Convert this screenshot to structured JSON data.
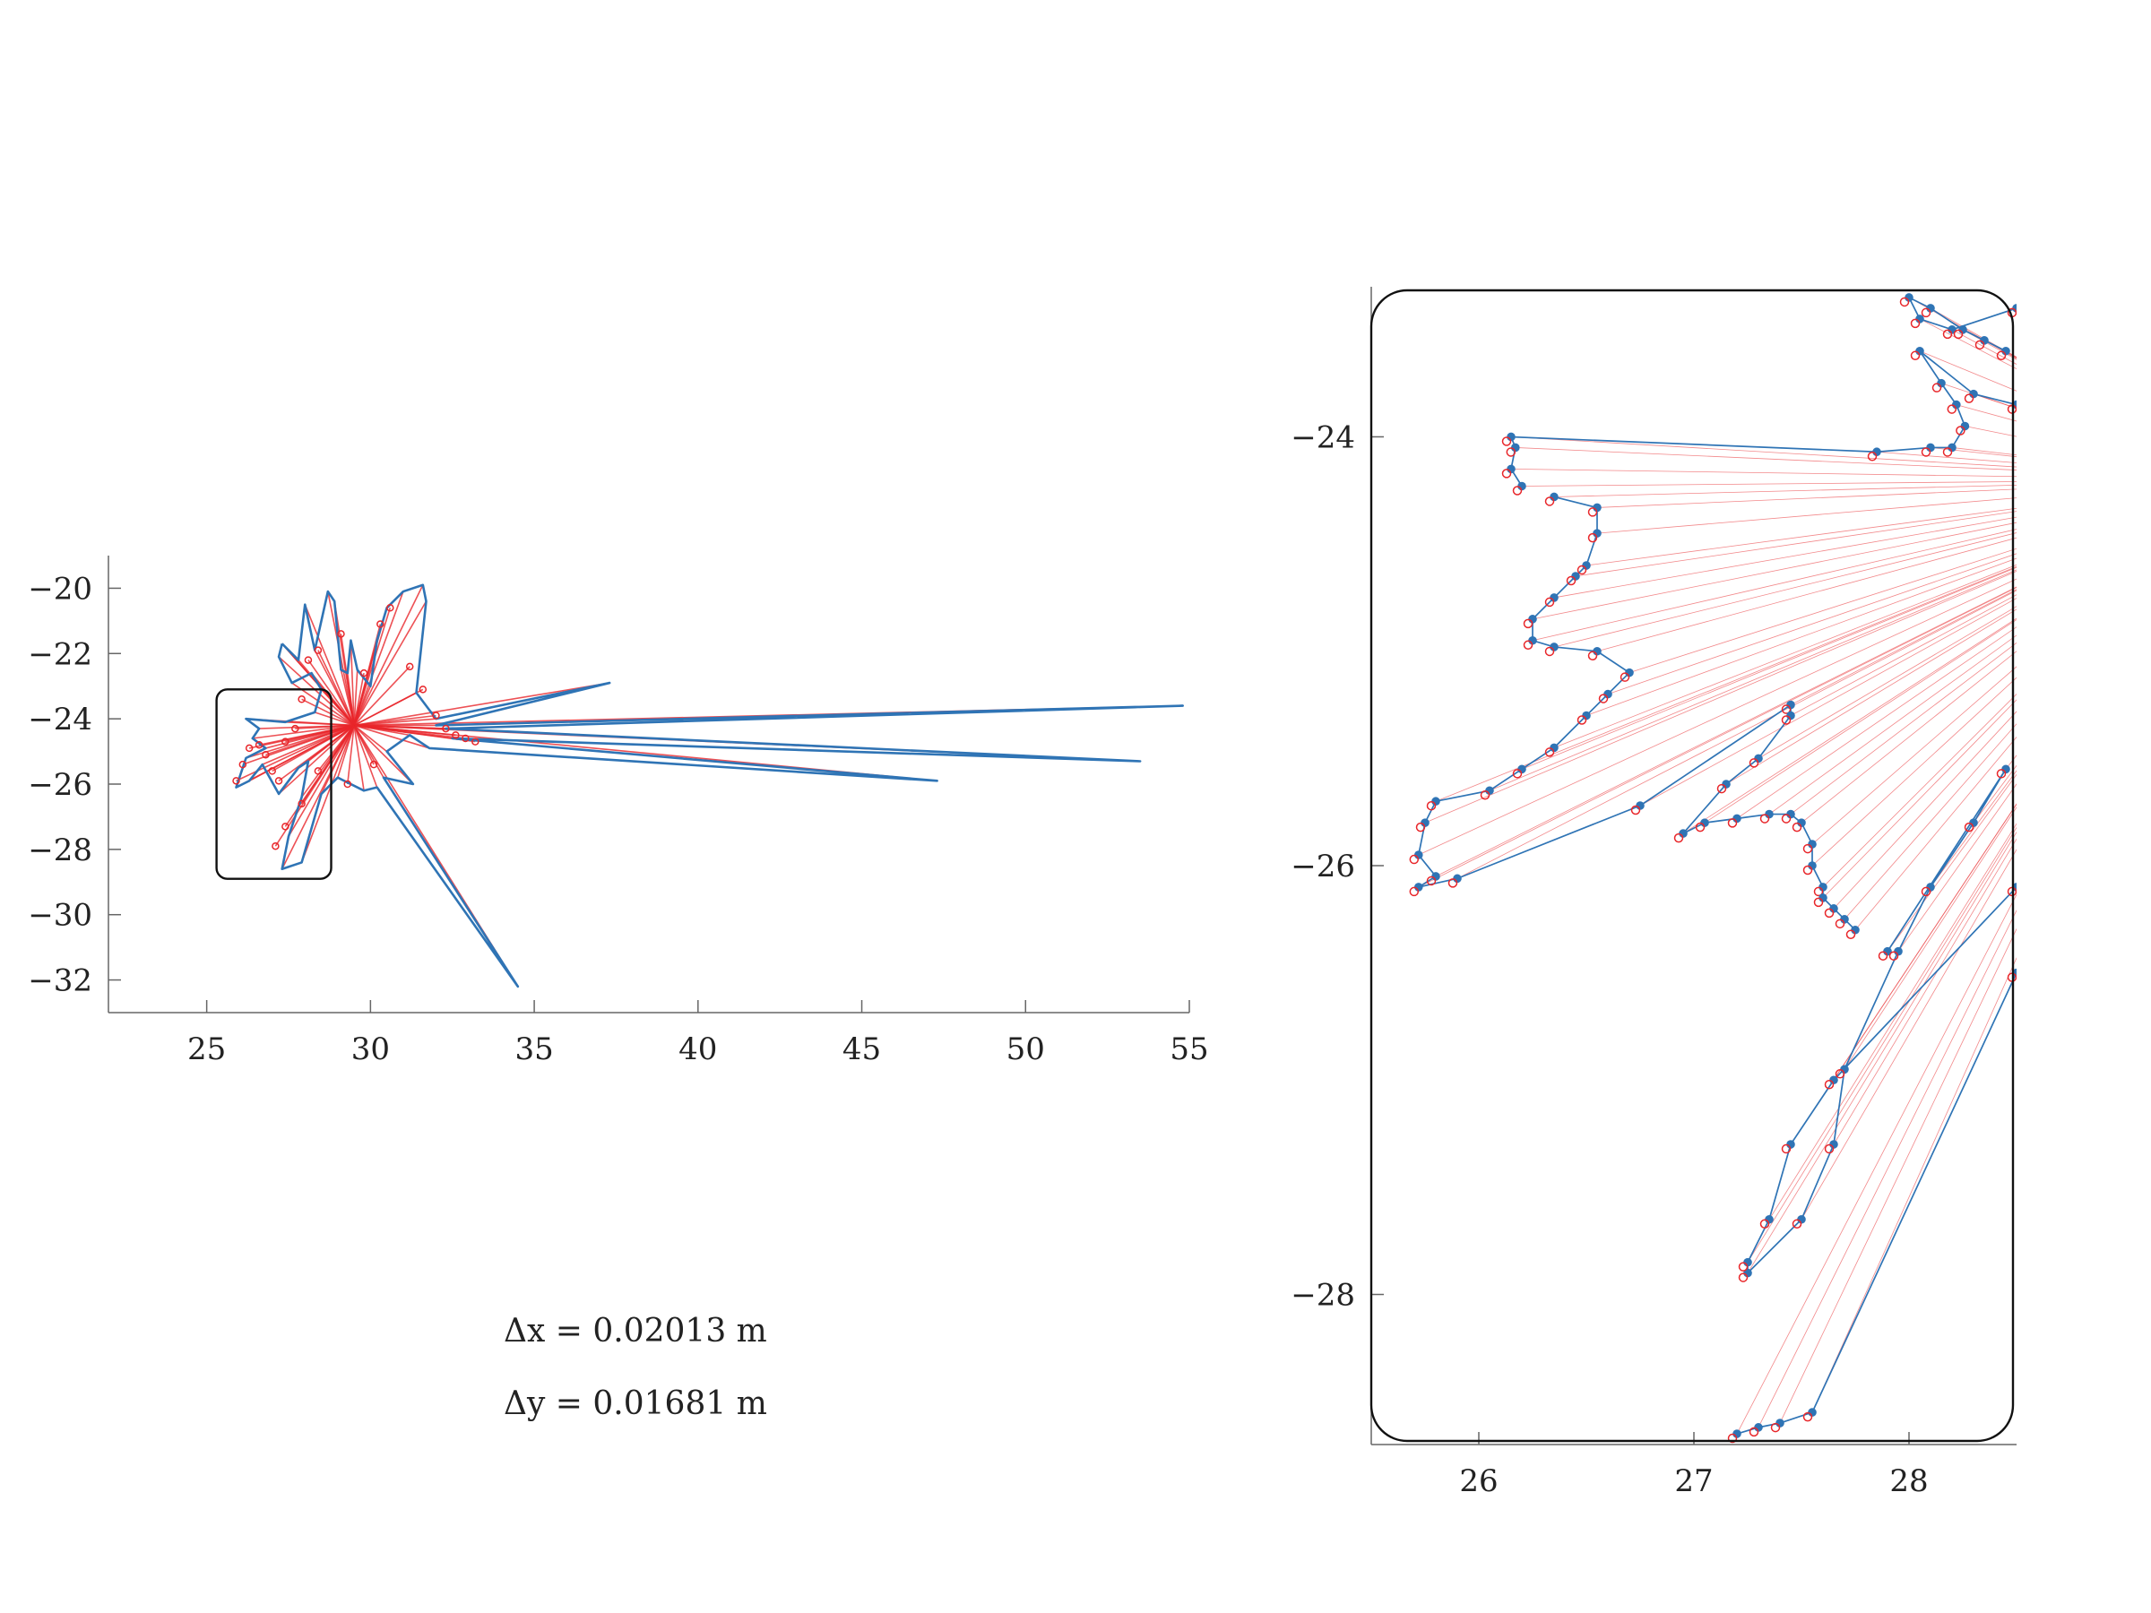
{
  "annotations": {
    "dx": "Δx = 0.02013 m",
    "dy": "Δy = 0.01681 m"
  },
  "colors": {
    "scan": "#2f74b5",
    "rays": "#e8262a",
    "box": "#111111"
  },
  "chart_data": [
    {
      "type": "line",
      "panel": "overview",
      "title": "",
      "xlabel": "",
      "ylabel": "",
      "xlim": [
        22,
        55
      ],
      "ylim": [
        -33,
        -19
      ],
      "xticks": [
        25,
        30,
        35,
        40,
        45,
        50,
        55
      ],
      "yticks": [
        -20,
        -22,
        -24,
        -26,
        -28,
        -30,
        -32
      ],
      "xtick_labels": [
        "25",
        "30",
        "35",
        "40",
        "45",
        "50",
        "55"
      ],
      "ytick_labels": [
        "−20",
        "−22",
        "−24",
        "−26",
        "−28",
        "−30",
        "−32"
      ],
      "grid": false,
      "sensor_origin": [
        29.5,
        -24.2
      ],
      "zoom_region": {
        "x": [
          25.3,
          28.8
        ],
        "y": [
          -28.9,
          -23.1
        ]
      },
      "series": [
        {
          "style": "scan-polyline",
          "x": [
            27.3,
            27.8,
            28.0,
            28.3,
            28.7,
            28.9,
            29.1,
            29.3,
            29.4,
            29.6,
            30.0,
            30.2,
            30.5,
            31.0,
            31.6,
            31.7,
            31.4,
            32.0,
            37.3,
            32.0,
            54.8,
            32.3,
            53.5,
            32.5,
            47.3,
            31.8,
            31.2,
            30.5,
            31.3,
            30.4,
            34.5,
            30.2,
            29.8,
            29.0,
            28.5,
            27.9,
            27.3,
            27.5,
            27.9,
            28.1,
            27.8,
            27.2,
            26.7,
            26.3,
            25.9,
            26.2,
            26.8,
            26.4,
            26.6,
            26.2,
            27.4,
            28.3,
            28.5,
            28.2,
            27.6,
            27.2,
            27.3
          ],
          "y": [
            -21.7,
            -22.2,
            -20.5,
            -21.9,
            -20.1,
            -20.4,
            -22.5,
            -22.6,
            -21.6,
            -22.5,
            -23.0,
            -21.6,
            -20.6,
            -20.1,
            -19.9,
            -20.4,
            -23.2,
            -24.0,
            -22.9,
            -24.2,
            -23.6,
            -24.3,
            -25.3,
            -24.6,
            -25.9,
            -24.9,
            -24.5,
            -25.0,
            -26.0,
            -25.8,
            -32.2,
            -26.1,
            -26.2,
            -25.8,
            -26.3,
            -28.4,
            -28.6,
            -27.6,
            -26.4,
            -25.3,
            -25.5,
            -26.3,
            -25.4,
            -25.9,
            -26.1,
            -25.2,
            -24.9,
            -24.6,
            -24.3,
            -24.0,
            -24.1,
            -23.8,
            -23.1,
            -22.6,
            -22.9,
            -22.1,
            -21.7
          ]
        },
        {
          "style": "measured-points",
          "x": [
            25.9,
            26.1,
            26.3,
            26.6,
            26.8,
            27.0,
            27.2,
            27.4,
            27.7,
            27.9,
            28.1,
            28.4,
            29.1,
            29.8,
            30.3,
            30.6,
            31.2,
            31.6,
            32.0,
            32.3,
            32.6,
            32.9,
            33.2,
            30.1,
            29.3,
            28.4,
            27.9,
            27.4,
            27.1
          ],
          "y": [
            -25.9,
            -25.4,
            -24.9,
            -24.8,
            -25.1,
            -25.6,
            -25.9,
            -24.7,
            -24.3,
            -23.4,
            -22.2,
            -21.9,
            -21.4,
            -22.6,
            -21.1,
            -20.6,
            -22.4,
            -23.1,
            -23.9,
            -24.3,
            -24.5,
            -24.6,
            -24.7,
            -25.4,
            -26.0,
            -25.6,
            -26.6,
            -27.3,
            -27.9
          ]
        }
      ]
    },
    {
      "type": "line",
      "panel": "zoom",
      "title": "",
      "xlabel": "",
      "ylabel": "",
      "xlim": [
        25.5,
        28.5
      ],
      "ylim": [
        -28.7,
        -23.3
      ],
      "xticks": [
        26,
        27,
        28
      ],
      "yticks": [
        -24,
        -26,
        -28
      ],
      "xtick_labels": [
        "26",
        "27",
        "28"
      ],
      "ytick_labels": [
        "−24",
        "−26",
        "−28"
      ],
      "grid": false,
      "sensor_origin": [
        29.5,
        -24.2
      ],
      "series": [
        {
          "style": "scan-polyline-a",
          "x": [
            28.5,
            28.3,
            28.05,
            28.15,
            28.22,
            28.26,
            28.2,
            28.1,
            27.85,
            26.15,
            26.17,
            26.15,
            26.2
          ],
          "y": [
            -23.85,
            -23.8,
            -23.6,
            -23.75,
            -23.85,
            -23.95,
            -24.05,
            -24.05,
            -24.07,
            -24.0,
            -24.05,
            -24.15,
            -24.23
          ]
        },
        {
          "style": "scan-polyline-b",
          "x": [
            28.5,
            28.2,
            28.05,
            28.0,
            28.1,
            28.25,
            28.35,
            28.45
          ],
          "y": [
            -23.4,
            -23.5,
            -23.45,
            -23.35,
            -23.4,
            -23.5,
            -23.55,
            -23.6
          ]
        },
        {
          "style": "scan-polyline-c",
          "x": [
            26.35,
            26.55,
            26.55,
            26.5,
            26.45,
            26.35,
            26.25,
            26.25,
            26.35,
            26.55,
            26.7,
            26.6,
            26.5,
            26.35,
            26.2,
            26.05,
            25.8,
            25.75,
            25.72,
            25.8,
            25.72,
            25.9,
            26.75,
            27.45,
            27.45,
            27.3,
            27.15,
            26.95,
            27.05,
            27.2,
            27.35,
            27.45,
            27.5,
            27.55,
            27.55,
            27.6,
            27.6,
            27.65,
            27.7,
            27.75
          ],
          "y": [
            -24.28,
            -24.33,
            -24.45,
            -24.6,
            -24.65,
            -24.75,
            -24.85,
            -24.95,
            -24.98,
            -25.0,
            -25.1,
            -25.2,
            -25.3,
            -25.45,
            -25.55,
            -25.65,
            -25.7,
            -25.8,
            -25.95,
            -26.05,
            -26.1,
            -26.06,
            -25.72,
            -25.25,
            -25.3,
            -25.5,
            -25.62,
            -25.85,
            -25.8,
            -25.78,
            -25.76,
            -25.76,
            -25.8,
            -25.9,
            -26.0,
            -26.1,
            -26.15,
            -26.2,
            -26.25,
            -26.3
          ]
        },
        {
          "style": "scan-polyline-d",
          "x": [
            27.9,
            28.45,
            28.3,
            28.1,
            27.95,
            27.7,
            27.65,
            27.5,
            27.25,
            27.25,
            27.35,
            27.45,
            27.65,
            28.5
          ],
          "y": [
            -26.4,
            -25.55,
            -25.8,
            -26.1,
            -26.4,
            -26.95,
            -27.3,
            -27.65,
            -27.9,
            -27.85,
            -27.65,
            -27.3,
            -27.0,
            -26.1
          ]
        },
        {
          "style": "scan-polyline-e",
          "x": [
            27.2,
            27.3,
            27.4,
            27.55,
            28.5
          ],
          "y": [
            -28.65,
            -28.62,
            -28.6,
            -28.55,
            -26.5
          ]
        }
      ]
    }
  ]
}
